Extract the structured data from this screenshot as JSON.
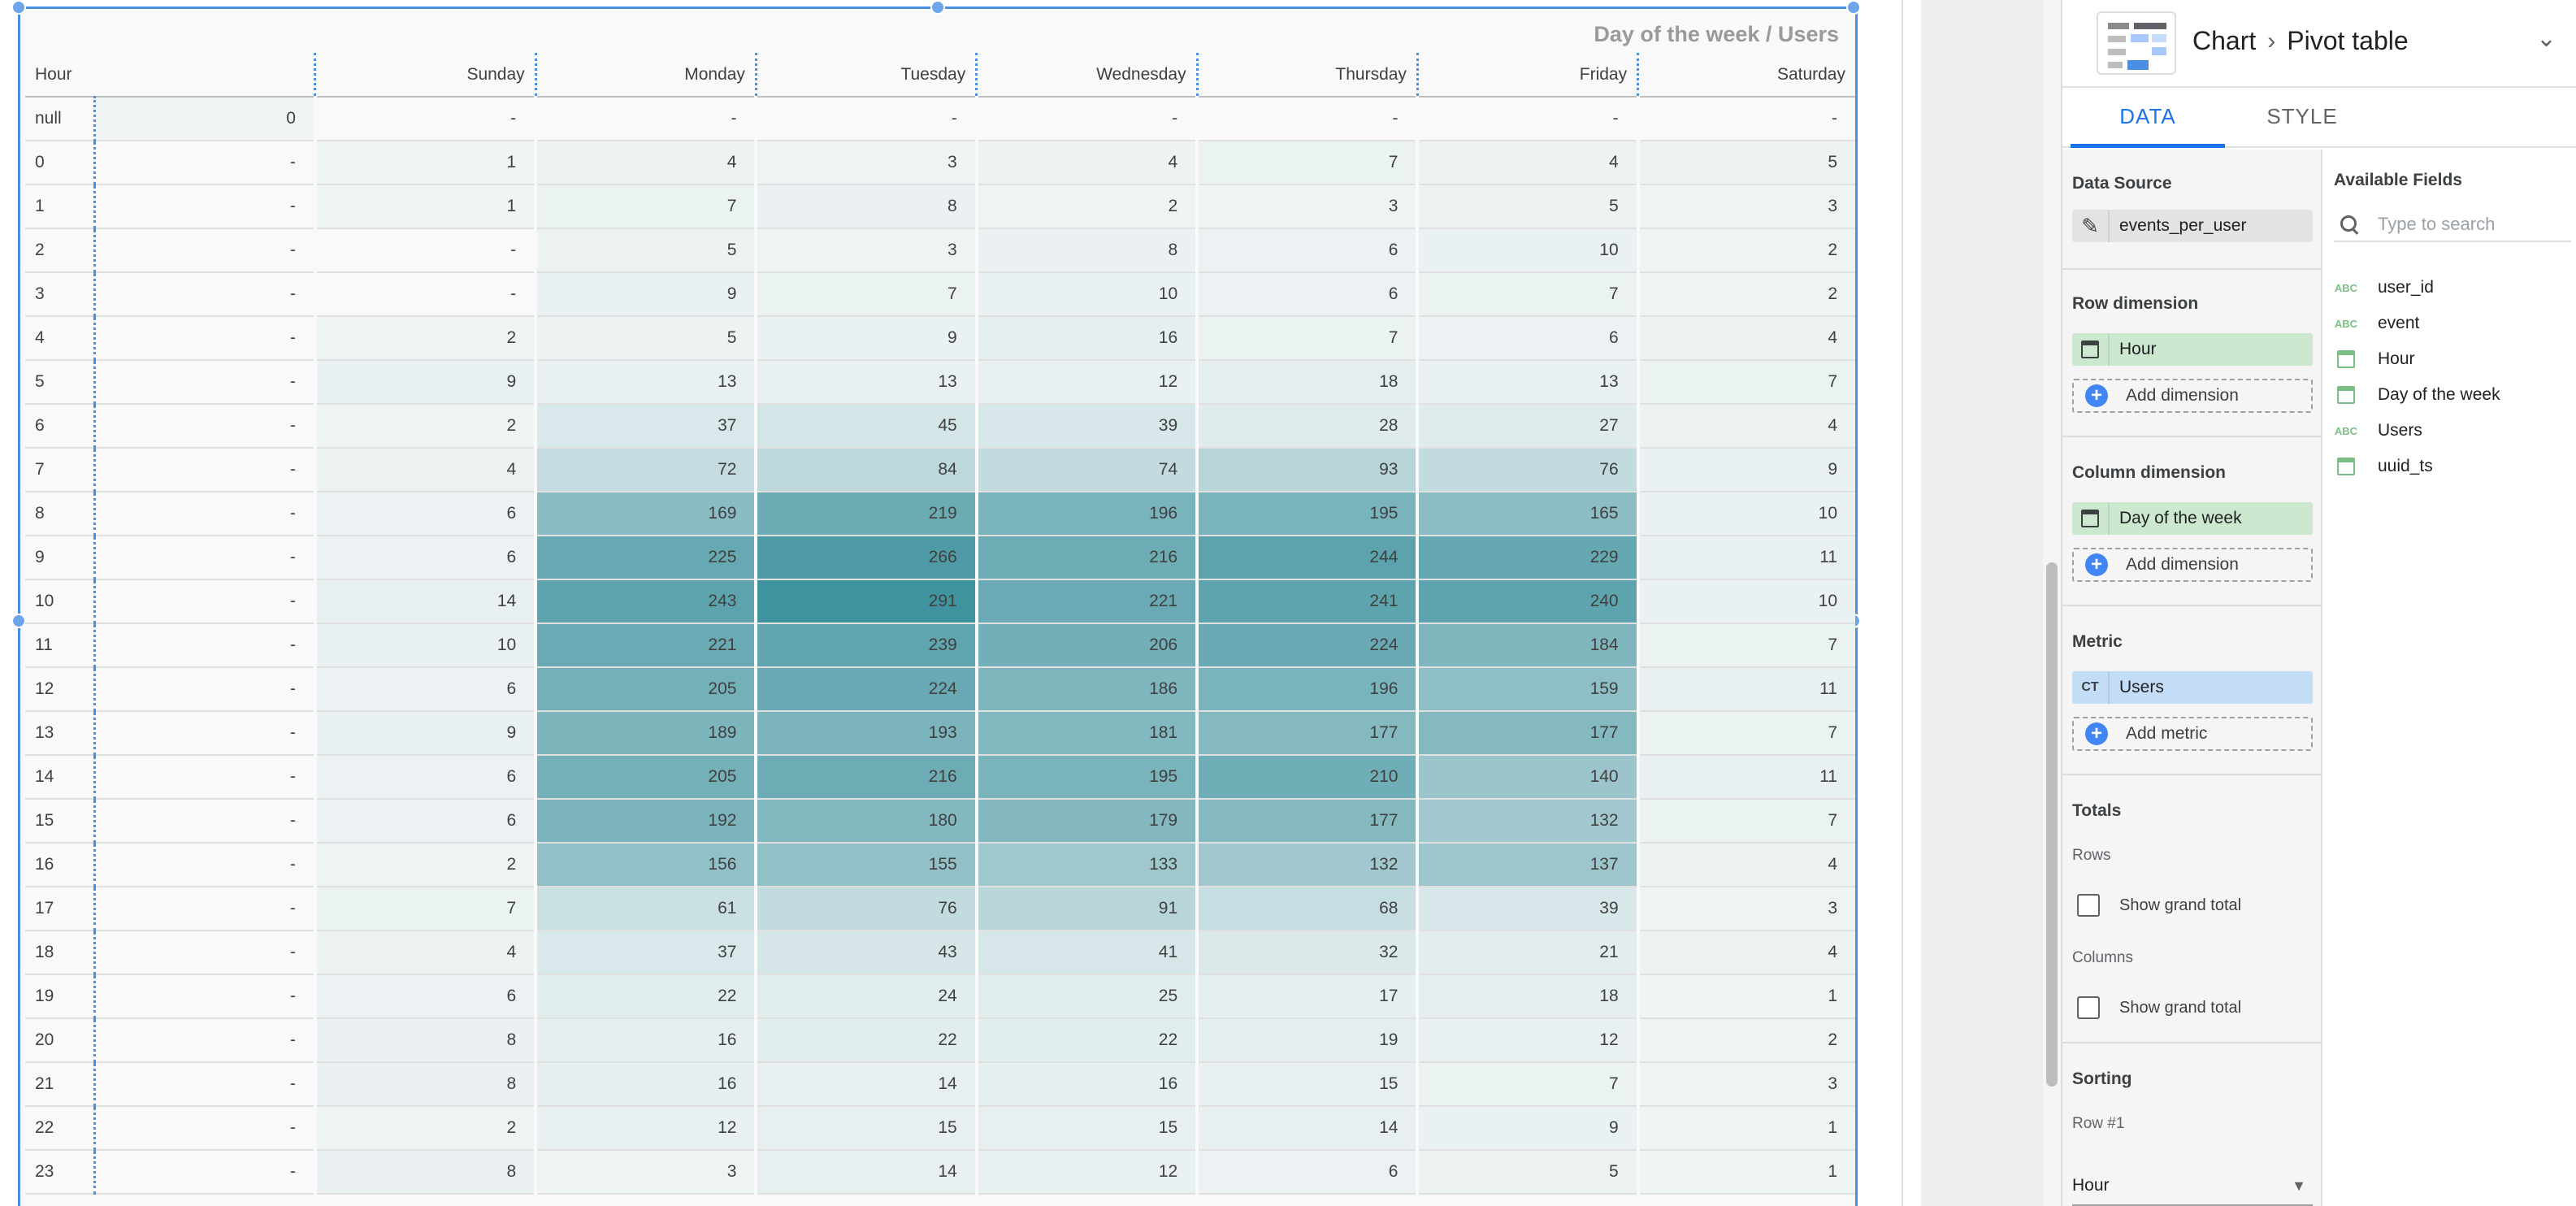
{
  "pivot": {
    "title": "Day of the week / Users",
    "row_header": "Hour",
    "columns": [
      "",
      "Sunday",
      "Monday",
      "Tuesday",
      "Wednesday",
      "Thursday",
      "Friday",
      "Saturday"
    ],
    "rows": [
      {
        "hour": "null",
        "values": [
          "0",
          "-",
          "-",
          "-",
          "-",
          "-",
          "-",
          "-"
        ]
      },
      {
        "hour": "0",
        "values": [
          "-",
          "1",
          "4",
          "3",
          "4",
          "7",
          "4",
          "5"
        ]
      },
      {
        "hour": "1",
        "values": [
          "-",
          "1",
          "7",
          "8",
          "2",
          "3",
          "5",
          "3"
        ]
      },
      {
        "hour": "2",
        "values": [
          "-",
          "-",
          "5",
          "3",
          "8",
          "6",
          "10",
          "2"
        ]
      },
      {
        "hour": "3",
        "values": [
          "-",
          "-",
          "9",
          "7",
          "10",
          "6",
          "7",
          "2"
        ]
      },
      {
        "hour": "4",
        "values": [
          "-",
          "2",
          "5",
          "9",
          "16",
          "7",
          "6",
          "4"
        ]
      },
      {
        "hour": "5",
        "values": [
          "-",
          "9",
          "13",
          "13",
          "12",
          "18",
          "13",
          "7"
        ]
      },
      {
        "hour": "6",
        "values": [
          "-",
          "2",
          "37",
          "45",
          "39",
          "28",
          "27",
          "4"
        ]
      },
      {
        "hour": "7",
        "values": [
          "-",
          "4",
          "72",
          "84",
          "74",
          "93",
          "76",
          "9"
        ]
      },
      {
        "hour": "8",
        "values": [
          "-",
          "6",
          "169",
          "219",
          "196",
          "195",
          "165",
          "10"
        ]
      },
      {
        "hour": "9",
        "values": [
          "-",
          "6",
          "225",
          "266",
          "216",
          "244",
          "229",
          "11"
        ]
      },
      {
        "hour": "10",
        "values": [
          "-",
          "14",
          "243",
          "291",
          "221",
          "241",
          "240",
          "10"
        ]
      },
      {
        "hour": "11",
        "values": [
          "-",
          "10",
          "221",
          "239",
          "206",
          "224",
          "184",
          "7"
        ]
      },
      {
        "hour": "12",
        "values": [
          "-",
          "6",
          "205",
          "224",
          "186",
          "196",
          "159",
          "11"
        ]
      },
      {
        "hour": "13",
        "values": [
          "-",
          "9",
          "189",
          "193",
          "181",
          "177",
          "177",
          "7"
        ]
      },
      {
        "hour": "14",
        "values": [
          "-",
          "6",
          "205",
          "216",
          "195",
          "210",
          "140",
          "11"
        ]
      },
      {
        "hour": "15",
        "values": [
          "-",
          "6",
          "192",
          "180",
          "179",
          "177",
          "132",
          "7"
        ]
      },
      {
        "hour": "16",
        "values": [
          "-",
          "2",
          "156",
          "155",
          "133",
          "132",
          "137",
          "4"
        ]
      },
      {
        "hour": "17",
        "values": [
          "-",
          "7",
          "61",
          "76",
          "91",
          "68",
          "39",
          "3"
        ]
      },
      {
        "hour": "18",
        "values": [
          "-",
          "4",
          "37",
          "43",
          "41",
          "32",
          "21",
          "4"
        ]
      },
      {
        "hour": "19",
        "values": [
          "-",
          "6",
          "22",
          "24",
          "25",
          "17",
          "18",
          "1"
        ]
      },
      {
        "hour": "20",
        "values": [
          "-",
          "8",
          "16",
          "22",
          "22",
          "19",
          "12",
          "2"
        ]
      },
      {
        "hour": "21",
        "values": [
          "-",
          "8",
          "16",
          "14",
          "16",
          "15",
          "7",
          "3"
        ]
      },
      {
        "hour": "22",
        "values": [
          "-",
          "2",
          "12",
          "15",
          "15",
          "14",
          "9",
          "1"
        ]
      },
      {
        "hour": "23",
        "values": [
          "-",
          "8",
          "3",
          "14",
          "12",
          "6",
          "5",
          "1"
        ]
      }
    ],
    "heat_color": "#3f939f"
  },
  "panel": {
    "breadcrumb": [
      "Chart",
      "Pivot table"
    ],
    "tabs": [
      "DATA",
      "STYLE"
    ],
    "active_tab": "DATA",
    "data_source": {
      "title": "Data Source",
      "name": "events_per_user"
    },
    "row_dimension": {
      "title": "Row dimension",
      "chip": "Hour",
      "add_label": "Add dimension"
    },
    "column_dimension": {
      "title": "Column dimension",
      "chip": "Day of the week",
      "add_label": "Add dimension"
    },
    "metric": {
      "title": "Metric",
      "chip_icon": "CT",
      "chip": "Users",
      "add_label": "Add metric"
    },
    "totals": {
      "title": "Totals",
      "rows_label": "Rows",
      "rows_checkbox": "Show grand total",
      "columns_label": "Columns",
      "columns_checkbox": "Show grand total"
    },
    "sorting": {
      "title": "Sorting",
      "row_label": "Row #1",
      "row_value": "Hour"
    },
    "available_fields": {
      "title": "Available Fields",
      "search_placeholder": "Type to search",
      "fields": [
        {
          "name": "user_id",
          "type": "text",
          "icon_label": "ABC"
        },
        {
          "name": "event",
          "type": "text",
          "icon_label": "ABC"
        },
        {
          "name": "Hour",
          "type": "date"
        },
        {
          "name": "Day of the week",
          "type": "date"
        },
        {
          "name": "Users",
          "type": "text",
          "icon_label": "ABC"
        },
        {
          "name": "uuid_ts",
          "type": "date"
        }
      ]
    }
  }
}
